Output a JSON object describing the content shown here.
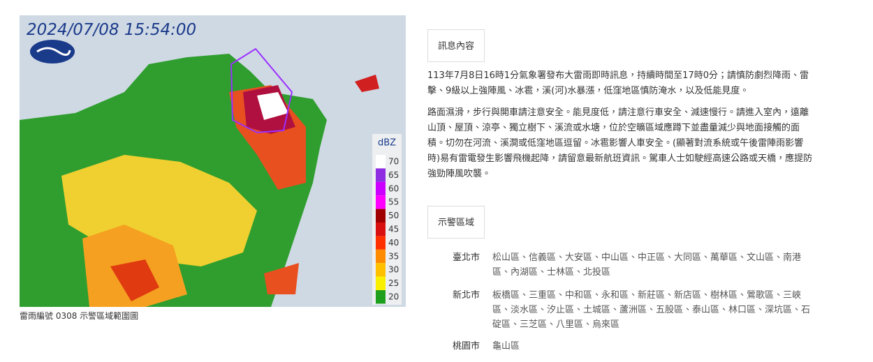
{
  "radar": {
    "timestamp": "2024/07/08 15:54:00",
    "legend_unit": "dBZ",
    "legend_levels": [
      70,
      65,
      60,
      55,
      50,
      45,
      40,
      35,
      30,
      25,
      20
    ],
    "caption": "雷雨編號 0308 示警區域範圍圖"
  },
  "message": {
    "heading": "訊息內容",
    "paragraphs": [
      "113年7月8日16時1分氣象署發布大雷雨即時訊息，持續時間至17時0分；請慎防劇烈降雨、雷擊、9級以上強陣風、冰雹，溪(河)水暴漲，低窪地區慎防淹水，以及低能見度。",
      "路面濕滑，步行與開車請注意安全。能見度低，請注意行車安全、減速慢行。請進入室內，遠離山頂、屋頂、涼亭、獨立樹下、溪流或水塘，位於空曠區域應蹲下並盡量減少與地面接觸的面積。切勿在河流、溪澗或低窪地區逗留。冰雹影響人車安全。(顯著對流系統或午後雷陣雨影響時)易有雷電發生影響飛機起降，請留意最新航班資訊。駕車人士如駛經高速公路或天橋，應提防強勁陣風吹襲。"
    ]
  },
  "areas": {
    "heading": "示警區域",
    "rows": [
      {
        "city": "臺北市",
        "districts": "松山區、信義區、大安區、中山區、中正區、大同區、萬華區、文山區、南港區、內湖區、士林區、北投區"
      },
      {
        "city": "新北市",
        "districts": "板橋區、三重區、中和區、永和區、新莊區、新店區、樹林區、鶯歌區、三峽區、淡水區、汐止區、土城區、蘆洲區、五股區、泰山區、林口區、深坑區、石碇區、三芝區、八里區、烏來區"
      },
      {
        "city": "桃園市",
        "districts": "龜山區"
      }
    ]
  }
}
